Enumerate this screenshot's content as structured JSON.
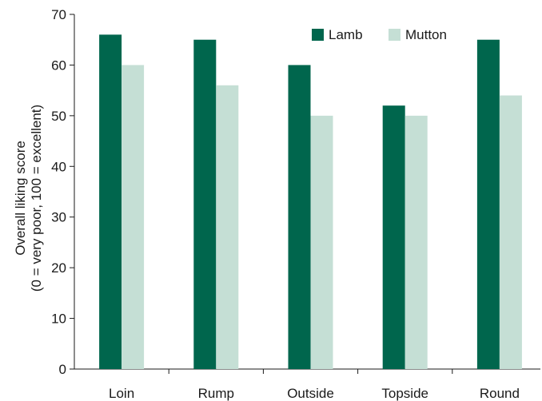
{
  "chart_data": {
    "type": "bar",
    "title": "",
    "xlabel": "",
    "ylabel_line1": "Overall liking score",
    "ylabel_line2": "(0 = very poor, 100 = excellent)",
    "categories": [
      "Loin",
      "Rump",
      "Outside",
      "Topside",
      "Round"
    ],
    "series": [
      {
        "name": "Lamb",
        "values": [
          66,
          65,
          60,
          52,
          65
        ],
        "color": "#00664d"
      },
      {
        "name": "Mutton",
        "values": [
          60,
          56,
          50,
          50,
          54
        ],
        "color": "#c5dfd5"
      }
    ],
    "ylim": [
      0,
      70
    ],
    "yticks": [
      0,
      10,
      20,
      30,
      40,
      50,
      60,
      70
    ],
    "grid": false,
    "legend_position": "top-right"
  }
}
